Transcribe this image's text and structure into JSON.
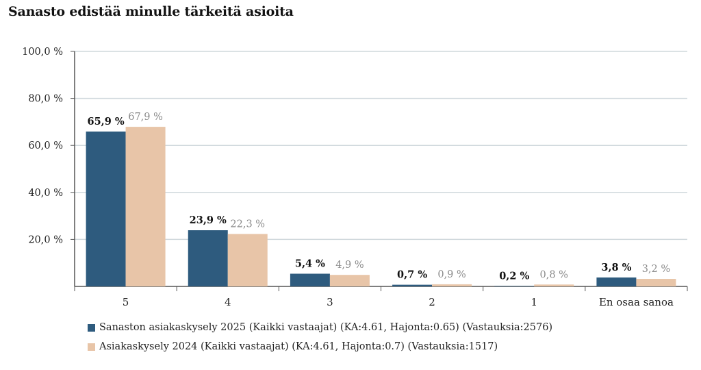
{
  "title": "Sanasto edistää minulle tärkeitä asioita",
  "colors": {
    "series_2025": "#2e5b7e",
    "series_2024": "#e8c5a8",
    "label_2025": "#111111",
    "label_2024": "#8a8a8a",
    "grid": "#cfd8dc",
    "axis": "#555555"
  },
  "chart_data": {
    "type": "bar",
    "title": "Sanasto edistää minulle tärkeitä asioita",
    "categories": [
      "5",
      "4",
      "3",
      "2",
      "1",
      "En osaa sanoa"
    ],
    "y_tick_labels": [
      "100,0 %",
      "80,0 %",
      "60,0 %",
      "40,0 %",
      "20,0 %"
    ],
    "y_ticks": [
      100,
      80,
      60,
      40,
      20
    ],
    "ylim": [
      0,
      100
    ],
    "grid": true,
    "legend_position": "bottom",
    "series": [
      {
        "name": "Sanaston asiakaskysely 2025 (Kaikki vastaajat) (KA:4.61, Hajonta:0.65) (Vastauksia:2576)",
        "values": [
          65.9,
          23.9,
          5.4,
          0.7,
          0.2,
          3.8
        ],
        "labels": [
          "65,9 %",
          "23,9 %",
          "5,4 %",
          "0,7 %",
          "0,2 %",
          "3,8 %"
        ]
      },
      {
        "name": "Asiakaskysely 2024 (Kaikki vastaajat) (KA:4.61, Hajonta:0.7) (Vastauksia:1517)",
        "values": [
          67.9,
          22.3,
          4.9,
          0.9,
          0.8,
          3.2
        ],
        "labels": [
          "67,9 %",
          "22,3 %",
          "4,9 %",
          "0,9 %",
          "0,8 %",
          "3,2 %"
        ]
      }
    ]
  }
}
